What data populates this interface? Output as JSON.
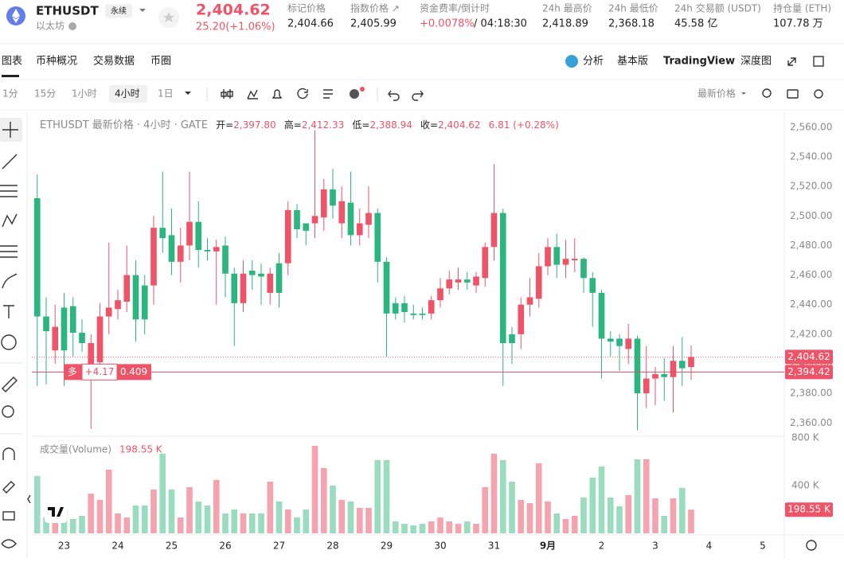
{
  "header": {
    "symbol": "ETHUSDT",
    "tag": "永续",
    "name": "以太坊",
    "price": "2,404.62",
    "change": "25.20(+1.06%)",
    "stats": [
      {
        "label": "标记价格",
        "value": "2,404.66"
      },
      {
        "label": "指数价格 ↗",
        "value": "2,405.99"
      },
      {
        "label": "资金费率/倒计时",
        "value": "+0.0078%",
        "extra": "/ 04:18:30"
      },
      {
        "label": "24h 最高价",
        "value": "2,418.89"
      },
      {
        "label": "24h 最低价",
        "value": "2,368.18"
      },
      {
        "label": "24h 交易额 (USDT)",
        "value": "45.58 亿"
      },
      {
        "label": "持仓量 (ETH)",
        "value": "107.78 万"
      }
    ]
  },
  "tabs": [
    "图表",
    "币种概况",
    "交易数据",
    "币圈"
  ],
  "views": [
    "分析",
    "基本版",
    "TradingView",
    "深度图"
  ],
  "intervals": [
    "1分",
    "15分",
    "1小时",
    "4小时",
    "1日"
  ],
  "price_mode": "最新价格",
  "chart_data": {
    "type": "candlestick",
    "legend": {
      "title": "ETHUSDT 最新价格 · 4小时 · GATE",
      "items": [
        {
          "label": "开=",
          "value": "2,397.80"
        },
        {
          "label": "高=",
          "value": "2,412.33"
        },
        {
          "label": "低=",
          "value": "2,388.94"
        },
        {
          "label": "收=",
          "value": "2,404.62"
        }
      ],
      "change": "6.81 (+0.28%)"
    },
    "up_color": "#ef5367",
    "down_color": "#2bb57f",
    "up_volume_color": "#f5a3ae",
    "down_volume_color": "#9adcc0",
    "open": [
      2512,
      2432,
      2409,
      2438,
      2439,
      2421,
      2399,
      2401,
      2432,
      2437,
      2442,
      2460,
      2453,
      2453,
      2492,
      2487,
      2469,
      2480,
      2496,
      2477,
      2476,
      2480,
      2461,
      2441,
      2463,
      2461,
      2448,
      2468,
      2468,
      2504,
      2495,
      2495,
      2499,
      2518,
      2495,
      2509,
      2487,
      2494,
      2502,
      2469,
      2441,
      2441,
      2434,
      2434,
      2434,
      2443,
      2451,
      2455,
      2457,
      2453,
      2458,
      2479,
      2502,
      2420,
      2420,
      2440,
      2444,
      2466,
      2479,
      2467,
      2470,
      2471,
      2458,
      2448,
      2417,
      2417,
      2410,
      2417,
      2380,
      2390,
      2393,
      2391,
      2402,
      2397.8
    ],
    "high": [
      2528,
      2445,
      2440,
      2448,
      2445,
      2430,
      2420,
      2441,
      2482,
      2450,
      2480,
      2470,
      2460,
      2500,
      2530,
      2505,
      2492,
      2530,
      2510,
      2485,
      2484,
      2486,
      2465,
      2470,
      2470,
      2468,
      2465,
      2475,
      2510,
      2508,
      2495,
      2558,
      2525,
      2532,
      2520,
      2530,
      2505,
      2520,
      2505,
      2472,
      2445,
      2446,
      2440,
      2438,
      2446,
      2458,
      2463,
      2465,
      2462,
      2462,
      2482,
      2535,
      2505,
      2425,
      2445,
      2458,
      2475,
      2485,
      2488,
      2484,
      2485,
      2472,
      2462,
      2450,
      2422,
      2420,
      2427,
      2419,
      2412,
      2398,
      2404,
      2412,
      2418,
      2412.33
    ],
    "low": [
      2385,
      2386,
      2400,
      2385,
      2405,
      2408,
      2356,
      2390,
      2420,
      2430,
      2435,
      2415,
      2420,
      2440,
      2475,
      2460,
      2455,
      2470,
      2465,
      2470,
      2440,
      2445,
      2412,
      2435,
      2450,
      2440,
      2440,
      2438,
      2460,
      2485,
      2480,
      2485,
      2490,
      2498,
      2485,
      2480,
      2480,
      2485,
      2455,
      2405,
      2430,
      2428,
      2430,
      2430,
      2430,
      2438,
      2447,
      2450,
      2450,
      2448,
      2452,
      2470,
      2385,
      2400,
      2410,
      2432,
      2438,
      2460,
      2458,
      2458,
      2462,
      2448,
      2425,
      2390,
      2405,
      2395,
      2400,
      2355,
      2370,
      2372,
      2375,
      2367,
      2385,
      2388.94
    ],
    "close": [
      2432,
      2422,
      2425,
      2409,
      2421,
      2414,
      2414,
      2432,
      2438,
      2443,
      2460,
      2430,
      2430,
      2492,
      2485,
      2469,
      2480,
      2496,
      2477,
      2476,
      2479,
      2461,
      2441,
      2461,
      2460,
      2459,
      2461,
      2448,
      2504,
      2491,
      2490,
      2500,
      2518,
      2507,
      2510,
      2487,
      2495,
      2502,
      2469,
      2434,
      2434,
      2435,
      2433,
      2433,
      2443,
      2451,
      2457,
      2457,
      2455,
      2459,
      2479,
      2502,
      2414,
      2414,
      2440,
      2445,
      2466,
      2479,
      2467,
      2471,
      2471,
      2458,
      2448,
      2417,
      2415,
      2412,
      2417,
      2380,
      2390,
      2393,
      2391,
      2402,
      2397,
      2404.62
    ],
    "volume_title": "成交量(Volume)",
    "volume_label": "198.55 K",
    "volume": [
      480,
      133,
      120,
      200,
      120,
      147,
      333,
      280,
      533,
      167,
      133,
      233,
      233,
      367,
      667,
      367,
      133,
      387,
      267,
      233,
      447,
      167,
      200,
      167,
      167,
      167,
      433,
      267,
      200,
      133,
      200,
      733,
      547,
      400,
      280,
      267,
      213,
      213,
      613,
      613,
      100,
      80,
      67,
      80,
      100,
      133,
      100,
      80,
      100,
      80,
      387,
      667,
      613,
      433,
      280,
      253,
      587,
      267,
      167,
      120,
      147,
      300,
      467,
      560,
      300,
      227,
      320,
      620,
      620,
      293,
      147,
      293,
      380,
      198.55
    ],
    "xlim": [
      -0.6,
      83.4
    ],
    "xticks": [
      {
        "value": 3,
        "label": "23"
      },
      {
        "value": 9,
        "label": "24"
      },
      {
        "value": 15,
        "label": "25"
      },
      {
        "value": 21,
        "label": "26"
      },
      {
        "value": 27,
        "label": "27"
      },
      {
        "value": 33,
        "label": "28"
      },
      {
        "value": 39,
        "label": "29"
      },
      {
        "value": 45,
        "label": "30"
      },
      {
        "value": 51,
        "label": "31"
      },
      {
        "value": 57,
        "label": "9月"
      },
      {
        "value": 63,
        "label": "2"
      },
      {
        "value": 69,
        "label": "3"
      },
      {
        "value": 75,
        "label": "4"
      },
      {
        "value": 81,
        "label": "5"
      }
    ],
    "ylim": [
      2351,
      2568
    ],
    "yticks": [
      {
        "value": 2360,
        "label": "2,360.00"
      },
      {
        "value": 2380,
        "label": "2,380.00"
      },
      {
        "value": 2400,
        "label": "2,400.00"
      },
      {
        "value": 2420,
        "label": "2,420.00"
      },
      {
        "value": 2440,
        "label": "2,440.00"
      },
      {
        "value": 2460,
        "label": "2,460.00"
      },
      {
        "value": 2480,
        "label": "2,480.00"
      },
      {
        "value": 2500,
        "label": "2,500.00"
      },
      {
        "value": 2520,
        "label": "2,520.00"
      },
      {
        "value": 2540,
        "label": "2,540.00"
      },
      {
        "value": 2560,
        "label": "2,560.00"
      }
    ],
    "vlim": [
      0,
      813
    ],
    "vticks": [
      {
        "value": 400,
        "label": "400 K"
      },
      {
        "value": 800,
        "label": "800 K"
      }
    ],
    "last_price": {
      "value": 2404.62,
      "label": "2,404.62"
    },
    "position": {
      "value": 2394.42,
      "label": "2,394.42",
      "side": "多",
      "pnl": "+4.17",
      "size": "0.409"
    },
    "grid": false
  }
}
